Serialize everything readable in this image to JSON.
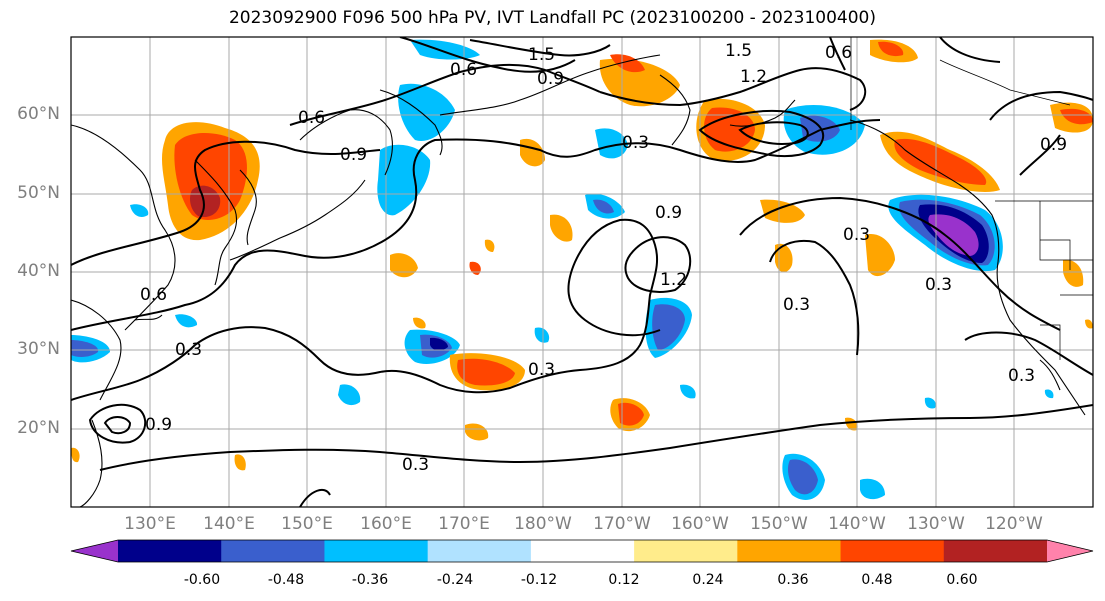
{
  "title": "2023092900 F096 500 hPa PV, IVT Landfall PC (2023100200 - 2023100400)",
  "map": {
    "lat_labels": [
      "60°N",
      "50°N",
      "40°N",
      "30°N",
      "20°N"
    ],
    "lon_labels": [
      "130°E",
      "140°E",
      "150°E",
      "160°E",
      "170°E",
      "180°W",
      "170°W",
      "160°W",
      "150°W",
      "140°W",
      "130°W",
      "120°W"
    ],
    "contour_labels": [
      "1.5",
      "1.5",
      "0.6",
      "0.9",
      "1.2",
      "0.6",
      "0.3",
      "0.6",
      "0.9",
      "0.9",
      "1.2",
      "0.3",
      "0.3",
      "0.3",
      "0.3",
      "0.3",
      "0.3",
      "0.3",
      "0.6",
      "0.9",
      "0.9"
    ]
  },
  "colorbar": {
    "colors": [
      "#9932cc",
      "#00008b",
      "#3a5fcd",
      "#00bfff",
      "#b0e2ff",
      "#ffffff",
      "#ffec8b",
      "#ffa500",
      "#ff4500",
      "#b22222",
      "#ff82ab"
    ],
    "tick_labels": [
      "-0.60",
      "-0.48",
      "-0.36",
      "-0.24",
      "-0.12",
      "0.12",
      "0.24",
      "0.36",
      "0.48",
      "0.60"
    ]
  }
}
